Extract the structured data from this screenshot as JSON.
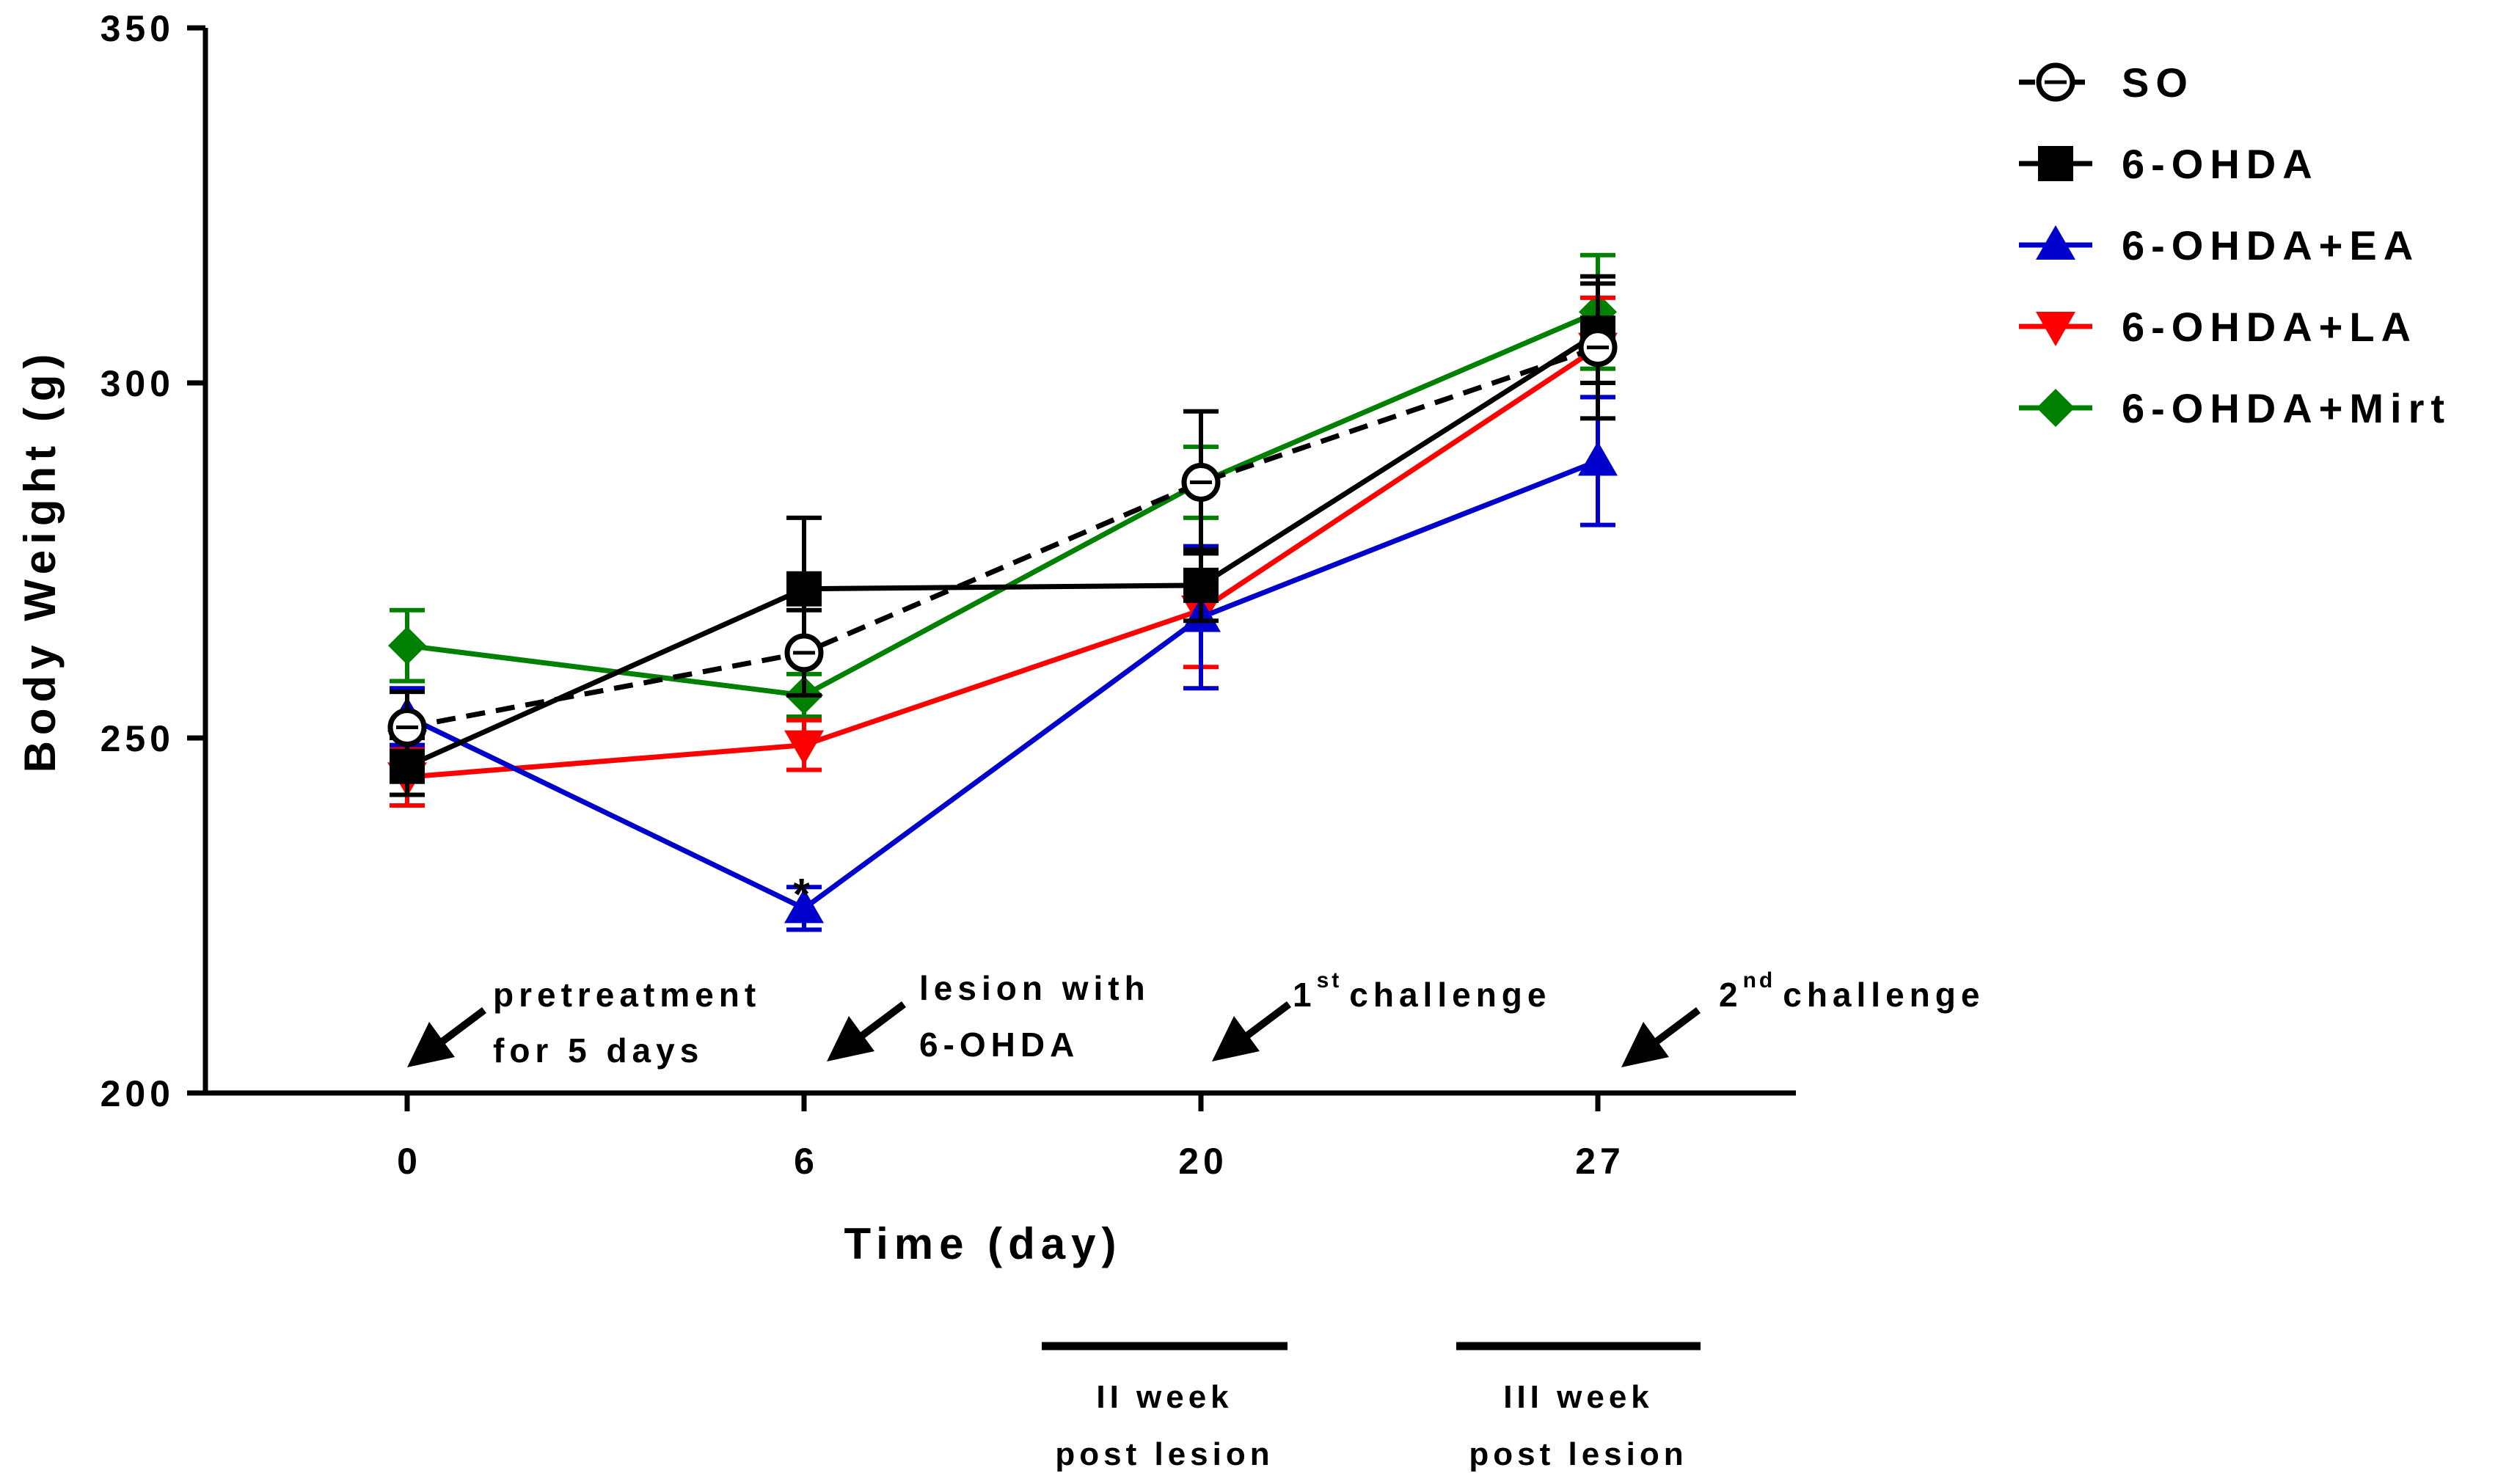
{
  "chart_data": {
    "type": "line",
    "title": "",
    "xlabel": "Time (day)",
    "ylabel": "Body Weight (g)",
    "ylim": [
      200,
      350
    ],
    "yticks": [
      200,
      250,
      300,
      350
    ],
    "x": [
      "0",
      "6",
      "20",
      "27"
    ],
    "series": [
      {
        "name": "SO",
        "color": "#000000",
        "marker": "open-circle",
        "dashed": true,
        "values": [
          251.5,
          262,
          286,
          305
        ],
        "errors": [
          5,
          6,
          10,
          10
        ]
      },
      {
        "name": "6-OHDA",
        "color": "#000000",
        "marker": "square",
        "dashed": false,
        "values": [
          246,
          271,
          271.5,
          307
        ],
        "errors": [
          4,
          10,
          5,
          7
        ]
      },
      {
        "name": "6-OHDA+EA",
        "color": "#0000cc",
        "marker": "triangle-up",
        "dashed": false,
        "values": [
          253,
          226,
          267,
          289
        ],
        "errors": [
          4,
          3,
          10,
          9
        ]
      },
      {
        "name": "6-OHDA+LA",
        "color": "#ff0000",
        "marker": "triangle-down",
        "dashed": false,
        "values": [
          244.5,
          249,
          268,
          305
        ],
        "errors": [
          4,
          3.5,
          8,
          7
        ]
      },
      {
        "name": "6-OHDA+Mirt",
        "color": "#008000",
        "marker": "diamond",
        "dashed": false,
        "values": [
          263,
          256,
          286,
          310
        ],
        "errors": [
          5,
          3,
          5,
          8
        ]
      }
    ],
    "significance": [
      {
        "series": "6-OHDA+EA",
        "x": "6",
        "label": "*"
      }
    ],
    "annotations": [
      {
        "x": "0",
        "lines": [
          "pretreatment",
          "for 5 days"
        ]
      },
      {
        "x": "6",
        "lines": [
          "lesion with",
          "6-OHDA"
        ]
      },
      {
        "x": "20",
        "ordinal": "1",
        "sup": "st",
        "text": "challenge"
      },
      {
        "x": "27",
        "ordinal": "2",
        "sup": "nd",
        "text": "challenge"
      }
    ],
    "periods": [
      {
        "from": "6",
        "to": "20",
        "lines": [
          "II week",
          "post lesion"
        ]
      },
      {
        "from": "20",
        "to": "27",
        "lines": [
          "III week",
          "post lesion"
        ]
      }
    ],
    "legend_position": "top-right"
  }
}
